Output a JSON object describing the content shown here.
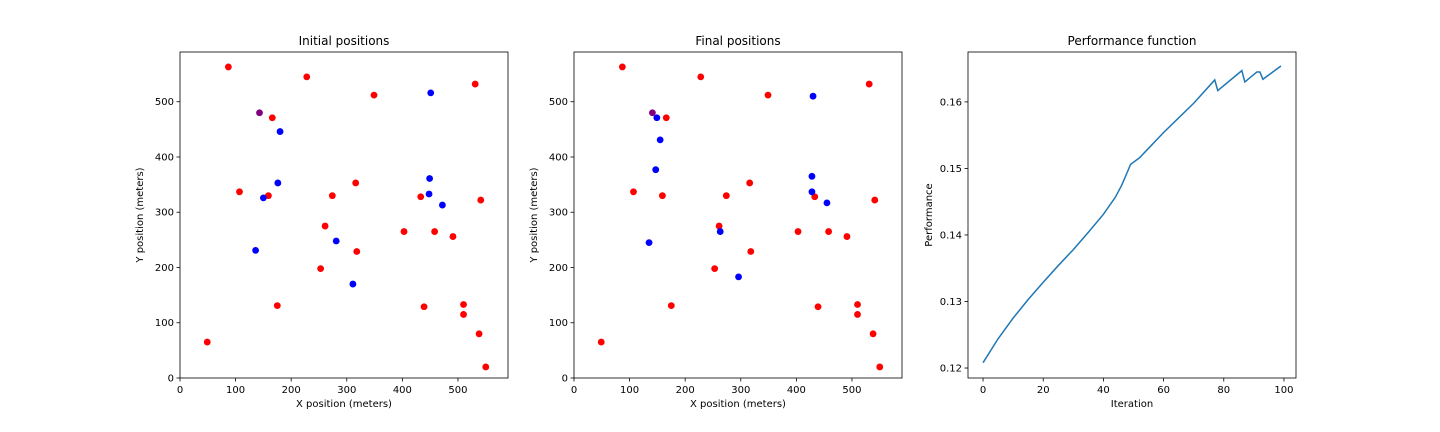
{
  "chart_data": [
    {
      "type": "scatter",
      "title": "Initial positions",
      "xlabel": "X position (meters)",
      "ylabel": "Y position (meters)",
      "xlim": [
        0,
        590
      ],
      "ylim": [
        0,
        590
      ],
      "xticks": [
        "0",
        "100",
        "200",
        "300",
        "400",
        "500"
      ],
      "yticks": [
        "0",
        "100",
        "200",
        "300",
        "400",
        "500"
      ],
      "grid": false,
      "series": [
        {
          "color": "#ff0000",
          "points": [
            [
              87,
              563
            ],
            [
              228,
              545
            ],
            [
              531,
              532
            ],
            [
              349,
              512
            ],
            [
              166,
              471
            ],
            [
              316,
              353
            ],
            [
              107,
              337
            ],
            [
              159,
              330
            ],
            [
              274,
              330
            ],
            [
              433,
              328
            ],
            [
              541,
              322
            ],
            [
              261,
              275
            ],
            [
              403,
              265
            ],
            [
              458,
              265
            ],
            [
              491,
              256
            ],
            [
              318,
              229
            ],
            [
              253,
              198
            ],
            [
              175,
              131
            ],
            [
              510,
              133
            ],
            [
              439,
              129
            ],
            [
              510,
              115
            ],
            [
              538,
              80
            ],
            [
              49,
              65
            ],
            [
              550,
              20
            ]
          ]
        },
        {
          "color": "#0000ff",
          "points": [
            [
              451,
              516
            ],
            [
              180,
              446
            ],
            [
              449,
              361
            ],
            [
              176,
              353
            ],
            [
              448,
              333
            ],
            [
              150,
              326
            ],
            [
              472,
              313
            ],
            [
              281,
              248
            ],
            [
              136,
              231
            ],
            [
              311,
              170
            ]
          ]
        },
        {
          "color": "#800080",
          "points": [
            [
              143,
              480
            ]
          ]
        }
      ]
    },
    {
      "type": "scatter",
      "title": "Final positions",
      "xlabel": "X position (meters)",
      "ylabel": "Y position (meters)",
      "xlim": [
        0,
        590
      ],
      "ylim": [
        0,
        590
      ],
      "xticks": [
        "0",
        "100",
        "200",
        "300",
        "400",
        "500"
      ],
      "yticks": [
        "0",
        "100",
        "200",
        "300",
        "400",
        "500"
      ],
      "grid": false,
      "series": [
        {
          "color": "#ff0000",
          "points": [
            [
              87,
              563
            ],
            [
              228,
              545
            ],
            [
              531,
              532
            ],
            [
              349,
              512
            ],
            [
              166,
              471
            ],
            [
              316,
              353
            ],
            [
              107,
              337
            ],
            [
              159,
              330
            ],
            [
              274,
              330
            ],
            [
              433,
              328
            ],
            [
              541,
              322
            ],
            [
              261,
              275
            ],
            [
              403,
              265
            ],
            [
              458,
              265
            ],
            [
              491,
              256
            ],
            [
              318,
              229
            ],
            [
              253,
              198
            ],
            [
              175,
              131
            ],
            [
              510,
              133
            ],
            [
              439,
              129
            ],
            [
              510,
              115
            ],
            [
              538,
              80
            ],
            [
              49,
              65
            ],
            [
              550,
              20
            ]
          ]
        },
        {
          "color": "#0000ff",
          "points": [
            [
              430,
              510
            ],
            [
              149,
              471
            ],
            [
              155,
              431
            ],
            [
              147,
              377
            ],
            [
              428,
              365
            ],
            [
              428,
              337
            ],
            [
              455,
              317
            ],
            [
              263,
              265
            ],
            [
              135,
              245
            ],
            [
              296,
              183
            ]
          ]
        },
        {
          "color": "#800080",
          "points": [
            [
              141,
              480
            ]
          ]
        }
      ]
    },
    {
      "type": "line",
      "title": "Performance function",
      "xlabel": "Iteration",
      "ylabel": "Performance",
      "xlim": [
        -5,
        104
      ],
      "ylim": [
        0.1185,
        0.1675
      ],
      "xticks": [
        "0",
        "20",
        "40",
        "60",
        "80",
        "100"
      ],
      "yticks": [
        "0.12",
        "0.13",
        "0.14",
        "0.15",
        "0.16"
      ],
      "grid": false,
      "series": [
        {
          "color": "#1f77b4",
          "points": [
            [
              0,
              0.1208
            ],
            [
              5,
              0.1244
            ],
            [
              10,
              0.1275
            ],
            [
              15,
              0.1303
            ],
            [
              20,
              0.1329
            ],
            [
              25,
              0.1354
            ],
            [
              30,
              0.1378
            ],
            [
              35,
              0.1404
            ],
            [
              40,
              0.1431
            ],
            [
              44,
              0.1457
            ],
            [
              46,
              0.1474
            ],
            [
              48,
              0.1495
            ],
            [
              49,
              0.1506
            ],
            [
              52,
              0.1516
            ],
            [
              60,
              0.1554
            ],
            [
              70,
              0.1598
            ],
            [
              77,
              0.1633
            ],
            [
              78,
              0.1617
            ],
            [
              86,
              0.1647
            ],
            [
              87,
              0.163
            ],
            [
              91,
              0.1645
            ],
            [
              92,
              0.1645
            ],
            [
              93,
              0.1634
            ],
            [
              99,
              0.1654
            ]
          ]
        }
      ]
    }
  ]
}
